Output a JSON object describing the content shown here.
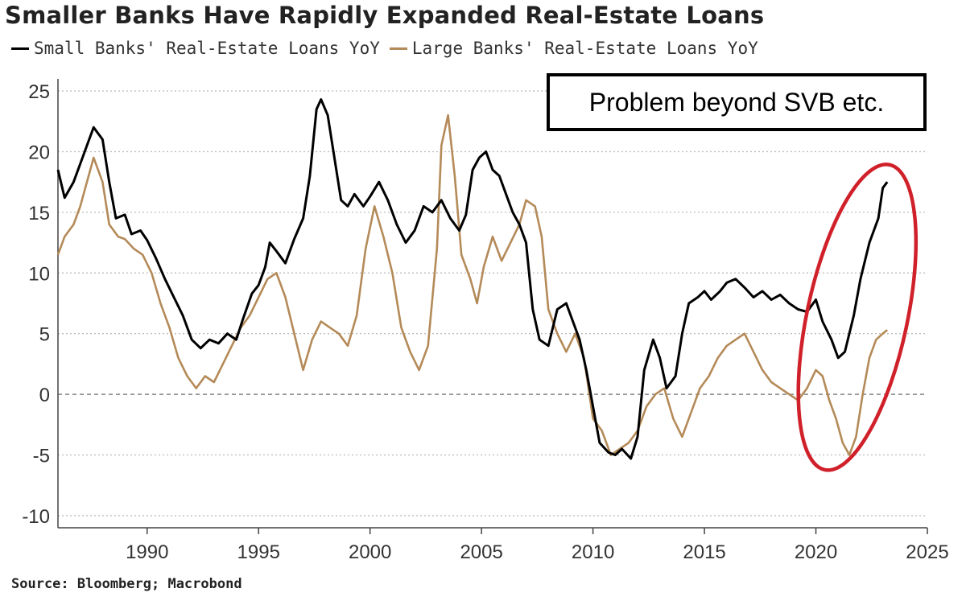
{
  "title": "Smaller Banks Have Rapidly Expanded Real-Estate Loans",
  "source": "Source: Bloomberg; Macrobond",
  "annotation": "Problem beyond SVB etc.",
  "colors": {
    "small": "#000000",
    "large": "#b48a58",
    "grid": "#bdbdbd",
    "highlight": "#d0202a"
  },
  "legend": [
    {
      "label": "Small Banks' Real-Estate Loans YoY",
      "color": "#000000"
    },
    {
      "label": "Large Banks' Real-Estate Loans YoY",
      "color": "#b48a58"
    }
  ],
  "chart_data": {
    "type": "line",
    "title": "Smaller Banks Have Rapidly Expanded Real-Estate Loans",
    "xlabel": "",
    "ylabel": "",
    "xlim": [
      1986,
      2025
    ],
    "ylim": [
      -11,
      26
    ],
    "x_ticks": [
      1990,
      1995,
      2000,
      2005,
      2010,
      2015,
      2020,
      2025
    ],
    "y_ticks": [
      25,
      20,
      15,
      10,
      5,
      0,
      -5,
      -10
    ],
    "grid": "horizontal dotted",
    "zero_line": "dashed",
    "legend_position": "top",
    "highlight": {
      "shape": "ellipse",
      "color": "#d0202a",
      "x_range": [
        2019.6,
        2024.1
      ],
      "y_range": [
        -6.5,
        19.2
      ]
    },
    "series": [
      {
        "name": "Small Banks' Real-Estate Loans YoY",
        "color": "#000000",
        "points": [
          [
            1986.0,
            18.5
          ],
          [
            1986.3,
            16.2
          ],
          [
            1986.7,
            17.5
          ],
          [
            1987.0,
            19.0
          ],
          [
            1987.3,
            20.5
          ],
          [
            1987.6,
            22.0
          ],
          [
            1988.0,
            21.0
          ],
          [
            1988.3,
            17.5
          ],
          [
            1988.6,
            14.5
          ],
          [
            1989.0,
            14.8
          ],
          [
            1989.3,
            13.2
          ],
          [
            1989.7,
            13.5
          ],
          [
            1990.0,
            12.7
          ],
          [
            1990.4,
            11.2
          ],
          [
            1990.8,
            9.5
          ],
          [
            1991.2,
            8.0
          ],
          [
            1991.6,
            6.5
          ],
          [
            1992.0,
            4.5
          ],
          [
            1992.4,
            3.8
          ],
          [
            1992.8,
            4.5
          ],
          [
            1993.2,
            4.2
          ],
          [
            1993.6,
            5.0
          ],
          [
            1994.0,
            4.5
          ],
          [
            1994.3,
            6.2
          ],
          [
            1994.7,
            8.3
          ],
          [
            1995.0,
            9.0
          ],
          [
            1995.3,
            10.5
          ],
          [
            1995.5,
            12.5
          ],
          [
            1995.8,
            11.8
          ],
          [
            1996.2,
            10.8
          ],
          [
            1996.6,
            12.8
          ],
          [
            1997.0,
            14.5
          ],
          [
            1997.3,
            18.0
          ],
          [
            1997.6,
            23.5
          ],
          [
            1997.8,
            24.3
          ],
          [
            1998.1,
            23.0
          ],
          [
            1998.4,
            19.5
          ],
          [
            1998.7,
            16.0
          ],
          [
            1999.0,
            15.5
          ],
          [
            1999.3,
            16.5
          ],
          [
            1999.7,
            15.5
          ],
          [
            2000.0,
            16.3
          ],
          [
            2000.4,
            17.5
          ],
          [
            2000.8,
            16.0
          ],
          [
            2001.2,
            14.0
          ],
          [
            2001.6,
            12.5
          ],
          [
            2002.0,
            13.5
          ],
          [
            2002.4,
            15.5
          ],
          [
            2002.8,
            15.0
          ],
          [
            2003.2,
            16.0
          ],
          [
            2003.6,
            14.5
          ],
          [
            2004.0,
            13.5
          ],
          [
            2004.3,
            14.8
          ],
          [
            2004.6,
            18.5
          ],
          [
            2004.9,
            19.5
          ],
          [
            2005.2,
            20.0
          ],
          [
            2005.5,
            18.5
          ],
          [
            2005.8,
            18.0
          ],
          [
            2006.1,
            16.5
          ],
          [
            2006.4,
            15.0
          ],
          [
            2006.7,
            14.0
          ],
          [
            2007.0,
            12.5
          ],
          [
            2007.3,
            7.0
          ],
          [
            2007.6,
            4.5
          ],
          [
            2008.0,
            4.0
          ],
          [
            2008.4,
            7.0
          ],
          [
            2008.8,
            7.5
          ],
          [
            2009.1,
            6.0
          ],
          [
            2009.4,
            4.5
          ],
          [
            2009.7,
            2.0
          ],
          [
            2010.0,
            -1.0
          ],
          [
            2010.3,
            -4.0
          ],
          [
            2010.7,
            -4.8
          ],
          [
            2011.0,
            -5.0
          ],
          [
            2011.3,
            -4.5
          ],
          [
            2011.7,
            -5.3
          ],
          [
            2012.0,
            -3.5
          ],
          [
            2012.3,
            2.0
          ],
          [
            2012.7,
            4.5
          ],
          [
            2013.0,
            3.0
          ],
          [
            2013.3,
            0.5
          ],
          [
            2013.7,
            1.5
          ],
          [
            2014.0,
            5.0
          ],
          [
            2014.3,
            7.5
          ],
          [
            2014.7,
            8.0
          ],
          [
            2015.0,
            8.5
          ],
          [
            2015.3,
            7.8
          ],
          [
            2015.7,
            8.5
          ],
          [
            2016.0,
            9.2
          ],
          [
            2016.4,
            9.5
          ],
          [
            2016.8,
            8.8
          ],
          [
            2017.2,
            8.0
          ],
          [
            2017.6,
            8.5
          ],
          [
            2018.0,
            7.8
          ],
          [
            2018.4,
            8.2
          ],
          [
            2018.8,
            7.5
          ],
          [
            2019.2,
            7.0
          ],
          [
            2019.6,
            6.8
          ],
          [
            2020.0,
            7.8
          ],
          [
            2020.3,
            6.0
          ],
          [
            2020.7,
            4.5
          ],
          [
            2021.0,
            3.0
          ],
          [
            2021.3,
            3.5
          ],
          [
            2021.7,
            6.5
          ],
          [
            2022.0,
            9.5
          ],
          [
            2022.4,
            12.5
          ],
          [
            2022.8,
            14.5
          ],
          [
            2023.0,
            17.0
          ],
          [
            2023.2,
            17.5
          ]
        ]
      },
      {
        "name": "Large Banks' Real-Estate Loans YoY",
        "color": "#b48a58",
        "points": [
          [
            1986.0,
            11.5
          ],
          [
            1986.3,
            13.0
          ],
          [
            1986.7,
            14.0
          ],
          [
            1987.0,
            15.5
          ],
          [
            1987.3,
            17.5
          ],
          [
            1987.6,
            19.5
          ],
          [
            1988.0,
            17.5
          ],
          [
            1988.3,
            14.0
          ],
          [
            1988.7,
            13.0
          ],
          [
            1989.0,
            12.8
          ],
          [
            1989.4,
            12.0
          ],
          [
            1989.8,
            11.5
          ],
          [
            1990.2,
            10.0
          ],
          [
            1990.6,
            7.5
          ],
          [
            1991.0,
            5.5
          ],
          [
            1991.4,
            3.0
          ],
          [
            1991.8,
            1.5
          ],
          [
            1992.2,
            0.5
          ],
          [
            1992.6,
            1.5
          ],
          [
            1993.0,
            1.0
          ],
          [
            1993.4,
            2.5
          ],
          [
            1993.8,
            4.0
          ],
          [
            1994.2,
            5.5
          ],
          [
            1994.6,
            6.5
          ],
          [
            1995.0,
            8.0
          ],
          [
            1995.4,
            9.5
          ],
          [
            1995.8,
            10.0
          ],
          [
            1996.2,
            8.0
          ],
          [
            1996.6,
            5.0
          ],
          [
            1997.0,
            2.0
          ],
          [
            1997.4,
            4.5
          ],
          [
            1997.8,
            6.0
          ],
          [
            1998.2,
            5.5
          ],
          [
            1998.6,
            5.0
          ],
          [
            1999.0,
            4.0
          ],
          [
            1999.4,
            6.5
          ],
          [
            1999.8,
            12.0
          ],
          [
            2000.2,
            15.5
          ],
          [
            2000.6,
            13.0
          ],
          [
            2001.0,
            10.0
          ],
          [
            2001.4,
            5.5
          ],
          [
            2001.8,
            3.5
          ],
          [
            2002.2,
            2.0
          ],
          [
            2002.6,
            4.0
          ],
          [
            2003.0,
            12.0
          ],
          [
            2003.2,
            20.5
          ],
          [
            2003.5,
            23.0
          ],
          [
            2003.8,
            18.0
          ],
          [
            2004.1,
            11.5
          ],
          [
            2004.5,
            9.5
          ],
          [
            2004.8,
            7.5
          ],
          [
            2005.1,
            10.5
          ],
          [
            2005.5,
            13.0
          ],
          [
            2005.9,
            11.0
          ],
          [
            2006.3,
            12.5
          ],
          [
            2006.7,
            14.0
          ],
          [
            2007.0,
            16.0
          ],
          [
            2007.4,
            15.5
          ],
          [
            2007.7,
            13.0
          ],
          [
            2008.0,
            7.0
          ],
          [
            2008.4,
            5.0
          ],
          [
            2008.8,
            3.5
          ],
          [
            2009.2,
            5.0
          ],
          [
            2009.6,
            3.0
          ],
          [
            2010.0,
            -2.0
          ],
          [
            2010.4,
            -3.0
          ],
          [
            2010.8,
            -5.0
          ],
          [
            2011.2,
            -4.5
          ],
          [
            2011.6,
            -4.0
          ],
          [
            2012.0,
            -3.0
          ],
          [
            2012.4,
            -1.0
          ],
          [
            2012.8,
            0.0
          ],
          [
            2013.2,
            0.5
          ],
          [
            2013.6,
            -2.0
          ],
          [
            2014.0,
            -3.5
          ],
          [
            2014.4,
            -1.5
          ],
          [
            2014.8,
            0.5
          ],
          [
            2015.2,
            1.5
          ],
          [
            2015.6,
            3.0
          ],
          [
            2016.0,
            4.0
          ],
          [
            2016.4,
            4.5
          ],
          [
            2016.8,
            5.0
          ],
          [
            2017.2,
            3.5
          ],
          [
            2017.6,
            2.0
          ],
          [
            2018.0,
            1.0
          ],
          [
            2018.4,
            0.5
          ],
          [
            2018.8,
            0.0
          ],
          [
            2019.2,
            -0.5
          ],
          [
            2019.6,
            0.5
          ],
          [
            2020.0,
            2.0
          ],
          [
            2020.3,
            1.5
          ],
          [
            2020.6,
            -0.5
          ],
          [
            2020.9,
            -2.0
          ],
          [
            2021.2,
            -4.0
          ],
          [
            2021.5,
            -5.0
          ],
          [
            2021.8,
            -3.5
          ],
          [
            2022.1,
            0.0
          ],
          [
            2022.4,
            3.0
          ],
          [
            2022.7,
            4.5
          ],
          [
            2023.0,
            5.0
          ],
          [
            2023.2,
            5.3
          ]
        ]
      }
    ]
  }
}
